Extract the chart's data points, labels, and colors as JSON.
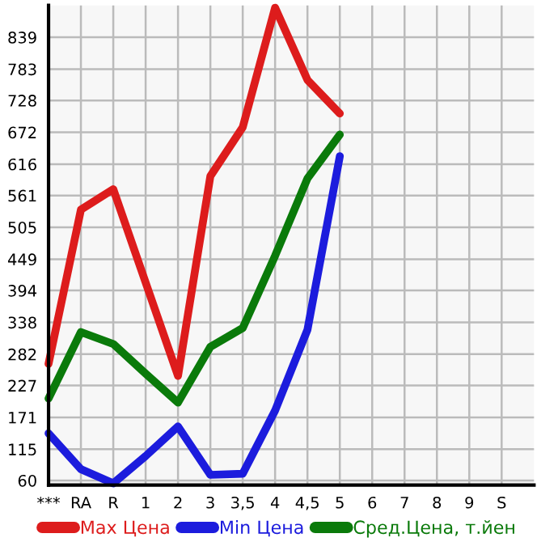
{
  "chart_data": {
    "type": "line",
    "categories": [
      "***",
      "RA",
      "R",
      "1",
      "2",
      "3",
      "3,5",
      "4",
      "4,5",
      "5",
      "6",
      "7",
      "8",
      "9",
      "S"
    ],
    "series": [
      {
        "name": "Max Цена",
        "color": "#dd1c1c",
        "values": [
          265,
          536,
          572,
          408,
          244,
          595,
          681,
          891,
          764,
          705,
          null,
          null,
          null,
          null,
          null
        ]
      },
      {
        "name": "Min Цена",
        "color": "#1c1cdd",
        "values": [
          143,
          80,
          55,
          103,
          155,
          70,
          72,
          183,
          325,
          630,
          null,
          null,
          null,
          null,
          null
        ]
      },
      {
        "name": "Сред.Цена, т.йен",
        "color": "#0a7a0a",
        "values": [
          204,
          321,
          300,
          248,
          197,
          295,
          328,
          455,
          591,
          668,
          null,
          null,
          null,
          null,
          null
        ]
      }
    ],
    "ylim": [
      52,
      895
    ],
    "yticks": [
      60,
      115,
      171,
      227,
      282,
      338,
      394,
      449,
      505,
      561,
      616,
      672,
      728,
      783,
      839
    ],
    "grid": true,
    "legend": "bottom",
    "marker": "none",
    "line_style": "solid"
  }
}
